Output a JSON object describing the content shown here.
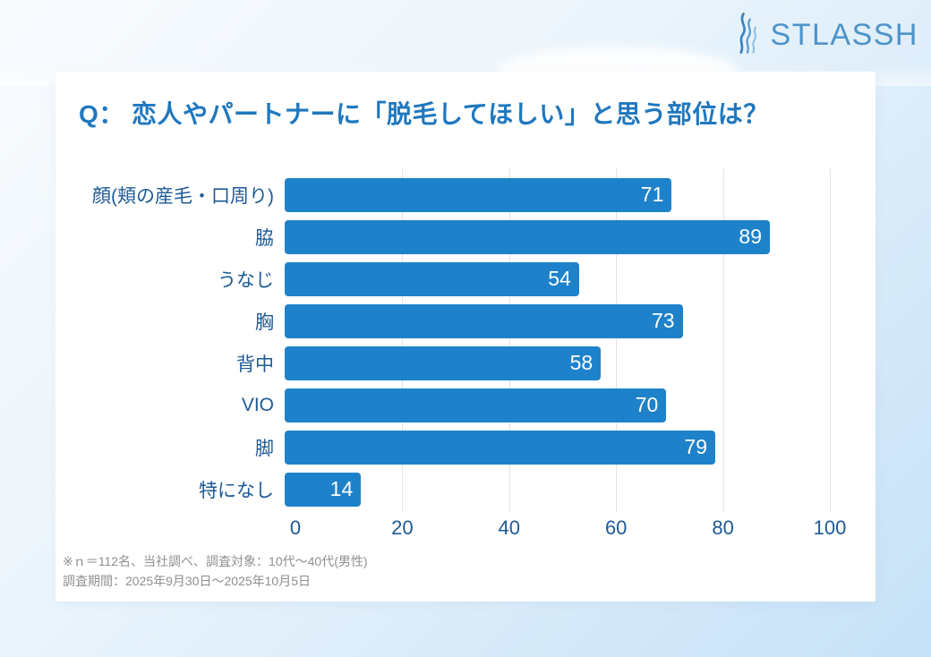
{
  "logo": {
    "text": "STLASSH",
    "color": "#4d93c9"
  },
  "chart_data": {
    "type": "bar",
    "orientation": "horizontal",
    "title": "Q： 恋人やパートナーに「脱毛してほしい」と思う部位は？",
    "categories": [
      "顔(頬の産毛・口周り)",
      "脇",
      "うなじ",
      "胸",
      "背中",
      "VIO",
      "脚",
      "特になし"
    ],
    "values": [
      71,
      89,
      54,
      73,
      58,
      70,
      79,
      14
    ],
    "xlim": [
      0,
      100
    ],
    "x_ticks": [
      0,
      20,
      40,
      60,
      80,
      100
    ],
    "grid": true,
    "bar_color": "#1e82ca",
    "value_label_color": "#ffffff",
    "label_color": "#1d5a96",
    "title_color": "#1f78bf"
  },
  "footnote": {
    "line1": "※ｎ＝112名、当社調べ、調査対象：10代～40代(男性)",
    "line2": "調査期間：2025年9月30日～2025年10月5日"
  }
}
